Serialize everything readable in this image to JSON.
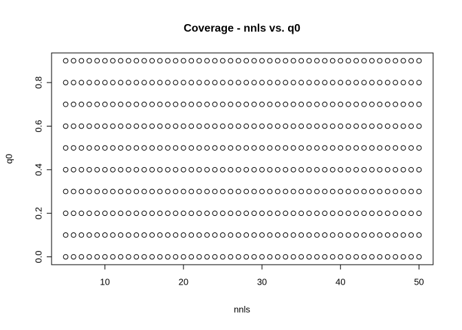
{
  "chart_data": {
    "type": "scatter",
    "title": "Coverage - nnls vs. q0",
    "x_label": "nnls",
    "y_label": "q0",
    "color": "#000000",
    "x": [
      5,
      6,
      7,
      8,
      9,
      10,
      11,
      12,
      13,
      14,
      15,
      16,
      17,
      18,
      19,
      20,
      21,
      22,
      23,
      24,
      25,
      26,
      27,
      28,
      29,
      30,
      31,
      32,
      33,
      34,
      35,
      36,
      37,
      38,
      39,
      40,
      41,
      42,
      43,
      44,
      45,
      46,
      47,
      48,
      49,
      50
    ],
    "series": [
      {
        "values": [
          0,
          0,
          0,
          0,
          0,
          0,
          0,
          0,
          0,
          0,
          0,
          0,
          0,
          0,
          0,
          0,
          0,
          0,
          0,
          0,
          0,
          0,
          0,
          0,
          0,
          0,
          0,
          0,
          0,
          0,
          0,
          0,
          0,
          0,
          0,
          0,
          0,
          0,
          0,
          0,
          0,
          0,
          0,
          0,
          0,
          0
        ]
      },
      {
        "values": [
          0.1,
          0.1,
          0.1,
          0.1,
          0.1,
          0.1,
          0.1,
          0.1,
          0.1,
          0.1,
          0.1,
          0.1,
          0.1,
          0.1,
          0.1,
          0.1,
          0.1,
          0.1,
          0.1,
          0.1,
          0.1,
          0.1,
          0.1,
          0.1,
          0.1,
          0.1,
          0.1,
          0.1,
          0.1,
          0.1,
          0.1,
          0.1,
          0.1,
          0.1,
          0.1,
          0.1,
          0.1,
          0.1,
          0.1,
          0.1,
          0.1,
          0.1,
          0.1,
          0.1,
          0.1,
          0.1
        ]
      },
      {
        "values": [
          0.2,
          0.2,
          0.2,
          0.2,
          0.2,
          0.2,
          0.2,
          0.2,
          0.2,
          0.2,
          0.2,
          0.2,
          0.2,
          0.2,
          0.2,
          0.2,
          0.2,
          0.2,
          0.2,
          0.2,
          0.2,
          0.2,
          0.2,
          0.2,
          0.2,
          0.2,
          0.2,
          0.2,
          0.2,
          0.2,
          0.2,
          0.2,
          0.2,
          0.2,
          0.2,
          0.2,
          0.2,
          0.2,
          0.2,
          0.2,
          0.2,
          0.2,
          0.2,
          0.2,
          0.2,
          0.2
        ]
      },
      {
        "values": [
          0.3,
          0.3,
          0.3,
          0.3,
          0.3,
          0.3,
          0.3,
          0.3,
          0.3,
          0.3,
          0.3,
          0.3,
          0.3,
          0.3,
          0.3,
          0.3,
          0.3,
          0.3,
          0.3,
          0.3,
          0.3,
          0.3,
          0.3,
          0.3,
          0.3,
          0.3,
          0.3,
          0.3,
          0.3,
          0.3,
          0.3,
          0.3,
          0.3,
          0.3,
          0.3,
          0.3,
          0.3,
          0.3,
          0.3,
          0.3,
          0.3,
          0.3,
          0.3,
          0.3,
          0.3,
          0.3
        ]
      },
      {
        "values": [
          0.4,
          0.4,
          0.4,
          0.4,
          0.4,
          0.4,
          0.4,
          0.4,
          0.4,
          0.4,
          0.4,
          0.4,
          0.4,
          0.4,
          0.4,
          0.4,
          0.4,
          0.4,
          0.4,
          0.4,
          0.4,
          0.4,
          0.4,
          0.4,
          0.4,
          0.4,
          0.4,
          0.4,
          0.4,
          0.4,
          0.4,
          0.4,
          0.4,
          0.4,
          0.4,
          0.4,
          0.4,
          0.4,
          0.4,
          0.4,
          0.4,
          0.4,
          0.4,
          0.4,
          0.4,
          0.4
        ]
      },
      {
        "values": [
          0.5,
          0.5,
          0.5,
          0.5,
          0.5,
          0.5,
          0.5,
          0.5,
          0.5,
          0.5,
          0.5,
          0.5,
          0.5,
          0.5,
          0.5,
          0.5,
          0.5,
          0.5,
          0.5,
          0.5,
          0.5,
          0.5,
          0.5,
          0.5,
          0.5,
          0.5,
          0.5,
          0.5,
          0.5,
          0.5,
          0.5,
          0.5,
          0.5,
          0.5,
          0.5,
          0.5,
          0.5,
          0.5,
          0.5,
          0.5,
          0.5,
          0.5,
          0.5,
          0.5,
          0.5,
          0.5
        ]
      },
      {
        "values": [
          0.6,
          0.6,
          0.6,
          0.6,
          0.6,
          0.6,
          0.6,
          0.6,
          0.6,
          0.6,
          0.6,
          0.6,
          0.6,
          0.6,
          0.6,
          0.6,
          0.6,
          0.6,
          0.6,
          0.6,
          0.6,
          0.6,
          0.6,
          0.6,
          0.6,
          0.6,
          0.6,
          0.6,
          0.6,
          0.6,
          0.6,
          0.6,
          0.6,
          0.6,
          0.6,
          0.6,
          0.6,
          0.6,
          0.6,
          0.6,
          0.6,
          0.6,
          0.6,
          0.6,
          0.6,
          0.6
        ]
      },
      {
        "values": [
          0.7,
          0.7,
          0.7,
          0.7,
          0.7,
          0.7,
          0.7,
          0.7,
          0.7,
          0.7,
          0.7,
          0.7,
          0.7,
          0.7,
          0.7,
          0.7,
          0.7,
          0.7,
          0.7,
          0.7,
          0.7,
          0.7,
          0.7,
          0.7,
          0.7,
          0.7,
          0.7,
          0.7,
          0.7,
          0.7,
          0.7,
          0.7,
          0.7,
          0.7,
          0.7,
          0.7,
          0.7,
          0.7,
          0.7,
          0.7,
          0.7,
          0.7,
          0.7,
          0.7,
          0.7,
          0.7
        ]
      },
      {
        "values": [
          0.8,
          0.8,
          0.8,
          0.8,
          0.8,
          0.8,
          0.8,
          0.8,
          0.8,
          0.8,
          0.8,
          0.8,
          0.8,
          0.8,
          0.8,
          0.8,
          0.8,
          0.8,
          0.8,
          0.8,
          0.8,
          0.8,
          0.8,
          0.8,
          0.8,
          0.8,
          0.8,
          0.8,
          0.8,
          0.8,
          0.8,
          0.8,
          0.8,
          0.8,
          0.8,
          0.8,
          0.8,
          0.8,
          0.8,
          0.8,
          0.8,
          0.8,
          0.8,
          0.8,
          0.8,
          0.8
        ]
      },
      {
        "values": [
          0.9,
          0.9,
          0.9,
          0.9,
          0.9,
          0.9,
          0.9,
          0.9,
          0.9,
          0.9,
          0.9,
          0.9,
          0.9,
          0.9,
          0.9,
          0.9,
          0.9,
          0.9,
          0.9,
          0.9,
          0.9,
          0.9,
          0.9,
          0.9,
          0.9,
          0.9,
          0.9,
          0.9,
          0.9,
          0.9,
          0.9,
          0.9,
          0.9,
          0.9,
          0.9,
          0.9,
          0.9,
          0.9,
          0.9,
          0.9,
          0.9,
          0.9,
          0.9,
          0.9,
          0.9,
          0.9
        ]
      }
    ],
    "xlim": [
      3.2,
      51.8
    ],
    "xticks": [
      10,
      20,
      30,
      40,
      50
    ],
    "ylim": [
      -0.036,
      0.936
    ],
    "yticks": [
      {
        "value": 0,
        "label": "0.0"
      },
      0.2,
      0.4,
      0.6,
      0.8
    ]
  }
}
